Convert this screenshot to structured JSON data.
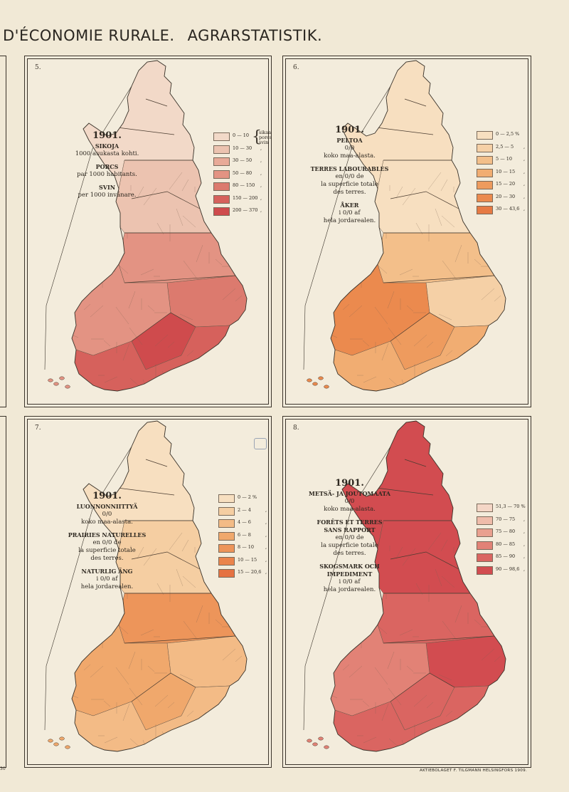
{
  "page": {
    "title_fr": "D'ÉCONOMIE RURALE.",
    "title_de": "AGRARSTATISTIK.",
    "edge_number": "30",
    "printer": "AKTIEBOLAGET F. TILGMANN HELSINGFORS 1909."
  },
  "maps": [
    {
      "number": "5.",
      "year": "1901.",
      "title_lines": [
        {
          "text": "SIKOJA",
          "bold": true
        },
        {
          "text": "1000 asukasta kohti.",
          "bold": false
        },
        {
          "text": "",
          "gap": true
        },
        {
          "text": "PORCS",
          "bold": true
        },
        {
          "text": "par 1000 habitants.",
          "bold": false
        },
        {
          "text": "",
          "gap": true
        },
        {
          "text": "SVIN",
          "bold": true
        },
        {
          "text": "per 1000 invånare.",
          "bold": false
        }
      ],
      "legend": [
        {
          "label": "0 — 10",
          "color": "#f2d9c8"
        },
        {
          "label": "10 — 30",
          "color": "#ecc3b0"
        },
        {
          "label": "30 — 50",
          "color": "#e8aa98"
        },
        {
          "label": "50 — 80",
          "color": "#e39383"
        },
        {
          "label": "80 — 150",
          "color": "#dc7a6e"
        },
        {
          "label": "150 — 200",
          "color": "#d6615c"
        },
        {
          "label": "200 — 370",
          "color": "#cf4b4d"
        }
      ],
      "legend_note": [
        "sikaa",
        "porcs",
        "svin"
      ],
      "legend_unit": ",",
      "region_levels": {
        "north": 0,
        "mid_north": 1,
        "central": 3,
        "east": 4,
        "south_west": 3,
        "south_east": 5,
        "core": 6
      }
    },
    {
      "number": "6.",
      "year": "1901.",
      "title_lines": [
        {
          "text": "PELTOA",
          "bold": true
        },
        {
          "text": "0/0",
          "bold": false
        },
        {
          "text": "koko maa-alasta.",
          "bold": false
        },
        {
          "text": "",
          "gap": true
        },
        {
          "text": "TERRES LABOURABLES",
          "bold": true
        },
        {
          "text": "en 0/0 de",
          "bold": false
        },
        {
          "text": "la superficie totale",
          "bold": false
        },
        {
          "text": "des terres.",
          "bold": false
        },
        {
          "text": "",
          "gap": true
        },
        {
          "text": "ÅKER",
          "bold": true
        },
        {
          "text": "i 0/0 af",
          "bold": false
        },
        {
          "text": "hela jordarealen.",
          "bold": false
        }
      ],
      "legend": [
        {
          "label": "0 — 2,5 %",
          "color": "#f7dfc0"
        },
        {
          "label": "2,5 — 5",
          "color": "#f5d0a6"
        },
        {
          "label": "5 — 10",
          "color": "#f3bf8a"
        },
        {
          "label": "10 — 15",
          "color": "#f1ad72"
        },
        {
          "label": "15 — 20",
          "color": "#ee9b5e"
        },
        {
          "label": "20 — 30",
          "color": "#eb8a4e"
        },
        {
          "label": "30 — 43,6",
          "color": "#e67a44"
        }
      ],
      "legend_note": [],
      "legend_unit": ",",
      "region_levels": {
        "north": 0,
        "mid_north": 0,
        "central": 2,
        "east": 1,
        "south_west": 5,
        "south_east": 3,
        "core": 4
      }
    },
    {
      "number": "7.",
      "year": "1901.",
      "title_lines": [
        {
          "text": "LUONNONNIITTYÄ",
          "bold": true
        },
        {
          "text": "0/0",
          "bold": false
        },
        {
          "text": "koko maa-alasta.",
          "bold": false
        },
        {
          "text": "",
          "gap": true
        },
        {
          "text": "PRAIRIES NATURELLES",
          "bold": true
        },
        {
          "text": "en 0/0 de",
          "bold": false
        },
        {
          "text": "la superficie totale",
          "bold": false
        },
        {
          "text": "des terres.",
          "bold": false
        },
        {
          "text": "",
          "gap": true
        },
        {
          "text": "NATURLIG ÄNG",
          "bold": true
        },
        {
          "text": "i 0/0 af",
          "bold": false
        },
        {
          "text": "hela jordarealen.",
          "bold": false
        }
      ],
      "legend": [
        {
          "label": "0 — 2 %",
          "color": "#f7dfc0"
        },
        {
          "label": "2 — 4",
          "color": "#f5cea2"
        },
        {
          "label": "4 — 6",
          "color": "#f3bb86"
        },
        {
          "label": "6 — 8",
          "color": "#f0a86c"
        },
        {
          "label": "8 — 10",
          "color": "#ed955a"
        },
        {
          "label": "10 — 15",
          "color": "#ea844c"
        },
        {
          "label": "15 — 20,6",
          "color": "#e57242"
        }
      ],
      "legend_note": [],
      "legend_unit": ",",
      "region_levels": {
        "north": 0,
        "mid_north": 1,
        "central": 4,
        "east": 2,
        "south_west": 3,
        "south_east": 2,
        "core": 3
      }
    },
    {
      "number": "8.",
      "year": "1901.",
      "title_lines": [
        {
          "text": "METSÄ- JA JOUTOMAATA",
          "bold": true
        },
        {
          "text": "0/0",
          "bold": false
        },
        {
          "text": "koko maa-alasta.",
          "bold": false
        },
        {
          "text": "",
          "gap": true
        },
        {
          "text": "FORÊTS ET TERRES",
          "bold": true
        },
        {
          "text": "SANS RAPPORT",
          "bold": true
        },
        {
          "text": "en 0/0 de",
          "bold": false
        },
        {
          "text": "la superficie totale",
          "bold": false
        },
        {
          "text": "des terres.",
          "bold": false
        },
        {
          "text": "",
          "gap": true
        },
        {
          "text": "SKOGSMARK OCH",
          "bold": true
        },
        {
          "text": "IMPEDIMENT",
          "bold": true
        },
        {
          "text": "i 0/0 af",
          "bold": false
        },
        {
          "text": "hela jordarealen.",
          "bold": false
        }
      ],
      "legend": [
        {
          "label": "51,3 — 70 %",
          "color": "#f4d6c6"
        },
        {
          "label": "70 — 75",
          "color": "#efbcaa"
        },
        {
          "label": "75 — 80",
          "color": "#e9a08f"
        },
        {
          "label": "80 — 85",
          "color": "#e28276"
        },
        {
          "label": "85 — 90",
          "color": "#da6561"
        },
        {
          "label": "90 — 98,6",
          "color": "#d24c50"
        }
      ],
      "legend_note": [],
      "legend_unit": ",",
      "region_levels": {
        "north": 5,
        "mid_north": 5,
        "central": 4,
        "east": 5,
        "south_west": 3,
        "south_east": 4,
        "core": 4
      }
    }
  ]
}
